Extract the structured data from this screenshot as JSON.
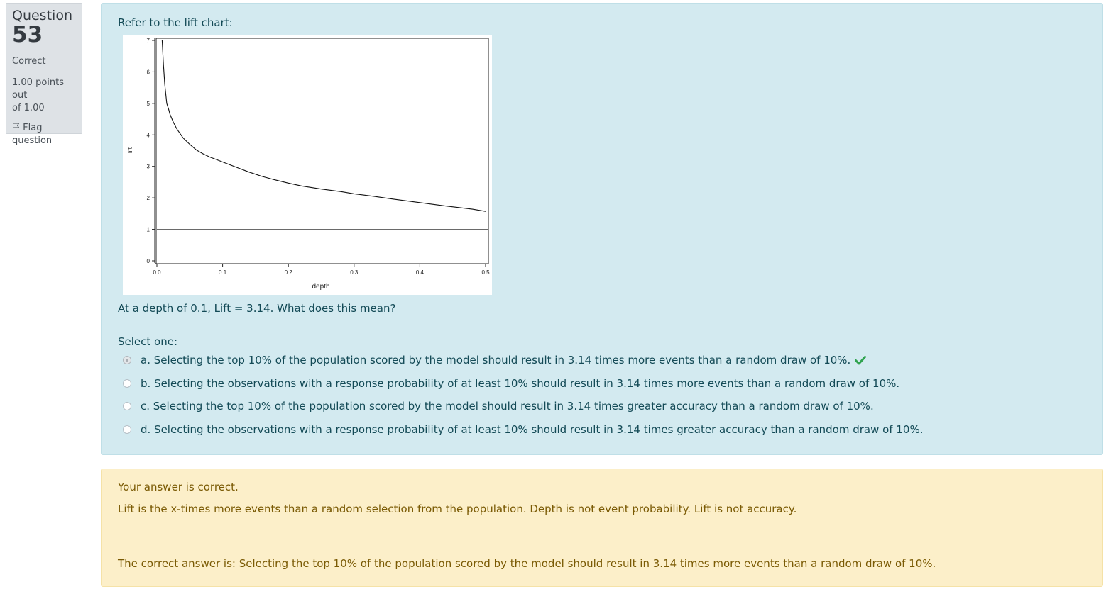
{
  "info": {
    "question_label": "Question",
    "question_number": "53",
    "state": "Correct",
    "grade_line1": "1.00 points out",
    "grade_line2": "of 1.00",
    "flag_line1": "Flag",
    "flag_line2": "question"
  },
  "question": {
    "intro": "Refer to the lift chart:",
    "prompt": "At a depth of 0.1, Lift = 3.14. What does this mean?",
    "select_label": "Select one:",
    "options": [
      {
        "text": "a. Selecting the top 10% of the population scored by the model should result in 3.14 times more events than a random draw of 10%.",
        "selected": true,
        "correct": true
      },
      {
        "text": "b. Selecting the observations with a response probability of at least 10% should result in 3.14 times more events than a random draw of 10%.",
        "selected": false
      },
      {
        "text": "c. Selecting the top 10% of the population scored by the model should result in 3.14 times greater accuracy than a random draw of 10%.",
        "selected": false
      },
      {
        "text": "d. Selecting the observations with a response probability of at least 10% should result in 3.14 times greater accuracy than a random draw of 10%.",
        "selected": false
      }
    ]
  },
  "feedback": {
    "state_message": "Your answer is correct.",
    "general": "Lift is the x-times more events than a random selection from the population. Depth is not event probability. Lift is not accuracy.",
    "right_answer": "The correct answer is: Selecting the top 10% of the population scored by the model should result in 3.14 times more events than a random draw of 10%."
  },
  "colors": {
    "formulation_bg": "#d3eaf0",
    "outcome_bg": "#fcefc9",
    "correct_check": "#2fa34f"
  },
  "chart_data": {
    "type": "line",
    "xlabel": "depth",
    "ylabel": "lift",
    "xlim": [
      0,
      0.5
    ],
    "ylim": [
      0,
      7
    ],
    "xticks": [
      "0.0",
      "0.1",
      "0.2",
      "0.3",
      "0.4",
      "0.5"
    ],
    "yticks": [
      "0",
      "1",
      "2",
      "3",
      "4",
      "5",
      "6",
      "7"
    ],
    "series": [
      {
        "x": [
          0.008,
          0.01,
          0.012,
          0.015,
          0.018,
          0.02,
          0.025,
          0.03,
          0.035,
          0.04,
          0.05,
          0.06,
          0.07,
          0.08,
          0.09,
          0.1,
          0.12,
          0.14,
          0.16,
          0.18,
          0.2,
          0.22,
          0.25,
          0.28,
          0.3,
          0.33,
          0.36,
          0.4,
          0.44,
          0.48,
          0.5
        ],
        "y": [
          7.0,
          6.2,
          5.6,
          5.0,
          4.8,
          4.65,
          4.4,
          4.2,
          4.05,
          3.9,
          3.7,
          3.52,
          3.4,
          3.3,
          3.22,
          3.14,
          2.98,
          2.82,
          2.68,
          2.57,
          2.47,
          2.38,
          2.28,
          2.2,
          2.13,
          2.05,
          1.96,
          1.85,
          1.74,
          1.64,
          1.57
        ]
      }
    ],
    "reference_line": {
      "y": 1
    }
  }
}
